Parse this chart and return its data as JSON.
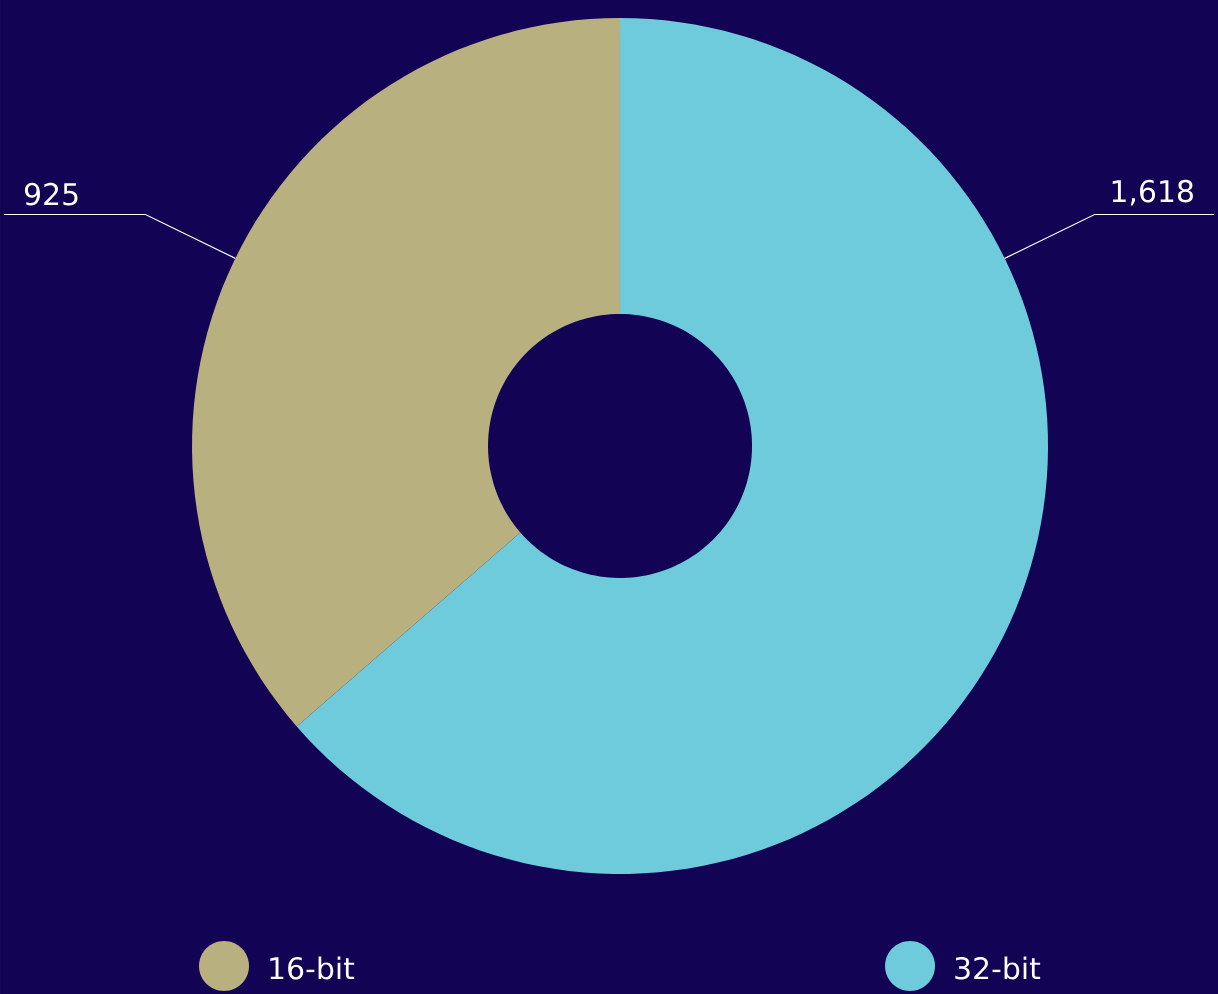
{
  "chart_data": {
    "type": "donut",
    "categories": [
      "16-bit",
      "32-bit"
    ],
    "values": [
      925,
      1618
    ],
    "colors": [
      "#b8b07f",
      "#6ecbdc"
    ],
    "value_labels": [
      "925",
      "1,618"
    ],
    "legend": "bottom"
  }
}
